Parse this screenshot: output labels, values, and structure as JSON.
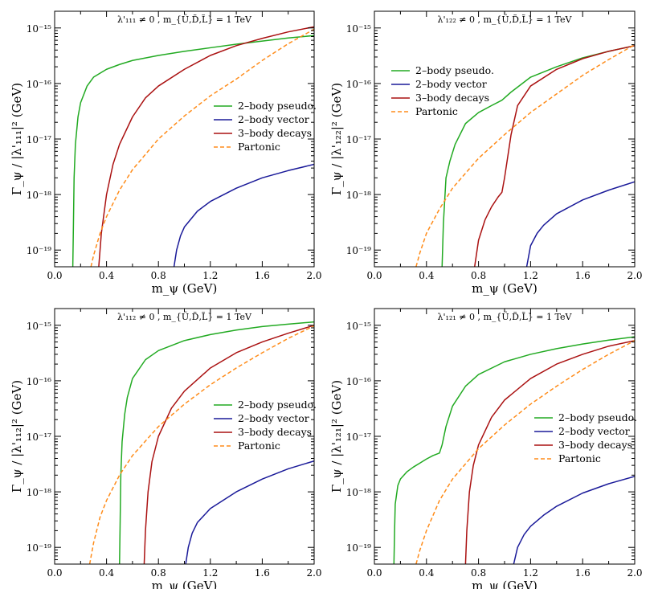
{
  "figure": {
    "line_colors": {
      "pseudo": "#22aa22",
      "vector": "#1a1a99",
      "three": "#aa1111",
      "partonic": "#ff8c1a"
    }
  },
  "chart_data": [
    {
      "type": "line",
      "annotation": "λ'₁₁₁ ≠ 0 ,  m_{Ũ,D̃,L̃} = 1 TeV",
      "xlabel": "m_ψ  (GeV)",
      "ylabel": "Γ_ψ / |λ'₁₁₁|²  (GeV)",
      "xlim": [
        0.0,
        2.0
      ],
      "ylim": [
        5e-20,
        2e-15
      ],
      "yscale": "log",
      "x_ticks": [
        "0.0",
        "0.4",
        "0.8",
        "1.2",
        "1.6",
        "2.0"
      ],
      "y_ticks": [
        "10⁻¹⁹",
        "10⁻¹⁸",
        "10⁻¹⁷",
        "10⁻¹⁶",
        "10⁻¹⁵"
      ],
      "legend_position": "right",
      "series": [
        {
          "name": "2–body pseudo.",
          "style": "solid",
          "color": "#22aa22",
          "x": [
            0.14,
            0.145,
            0.15,
            0.16,
            0.18,
            0.2,
            0.25,
            0.3,
            0.4,
            0.5,
            0.6,
            0.8,
            1.0,
            1.2,
            1.4,
            1.6,
            1.8,
            2.0
          ],
          "y": [
            5e-20,
            3e-19,
            2e-18,
            8e-18,
            2.5e-17,
            4.5e-17,
            9e-17,
            1.3e-16,
            1.8e-16,
            2.2e-16,
            2.6e-16,
            3.2e-16,
            3.8e-16,
            4.4e-16,
            5.1e-16,
            5.8e-16,
            6.6e-16,
            7.3e-16
          ]
        },
        {
          "name": "2–body vector",
          "style": "solid",
          "color": "#1a1a99",
          "x": [
            0.92,
            0.94,
            0.97,
            1.0,
            1.1,
            1.2,
            1.4,
            1.6,
            1.8,
            2.0
          ],
          "y": [
            5e-20,
            1e-19,
            1.8e-19,
            2.6e-19,
            5e-19,
            7.5e-19,
            1.3e-18,
            2e-18,
            2.7e-18,
            3.5e-18
          ]
        },
        {
          "name": "3–body decays",
          "style": "solid",
          "color": "#aa1111",
          "x": [
            0.34,
            0.36,
            0.4,
            0.45,
            0.5,
            0.6,
            0.7,
            0.8,
            1.0,
            1.2,
            1.4,
            1.6,
            1.8,
            2.0
          ],
          "y": [
            5e-20,
            2e-19,
            1e-18,
            3.5e-18,
            8e-18,
            2.5e-17,
            5.5e-17,
            9e-17,
            1.8e-16,
            3.2e-16,
            4.8e-16,
            6.5e-16,
            8.5e-16,
            1.05e-15
          ]
        },
        {
          "name": "Partonic",
          "style": "dashed",
          "color": "#ff8c1a",
          "x": [
            0.28,
            0.3,
            0.35,
            0.4,
            0.5,
            0.6,
            0.8,
            1.0,
            1.2,
            1.4,
            1.6,
            1.8,
            2.0
          ],
          "y": [
            5e-20,
            8e-20,
            2e-19,
            4e-19,
            1.2e-18,
            2.8e-18,
            1e-17,
            2.6e-17,
            6e-17,
            1.2e-16,
            2.6e-16,
            5.2e-16,
            9.5e-16
          ]
        }
      ]
    },
    {
      "type": "line",
      "annotation": "λ'₁₂₂ ≠ 0 ,  m_{Ũ,D̃,L̃} = 1 TeV",
      "xlabel": "m_ψ  (GeV)",
      "ylabel": "Γ_ψ / |λ'₁₂₂|²  (GeV)",
      "xlim": [
        0.0,
        2.0
      ],
      "ylim": [
        5e-20,
        2e-15
      ],
      "yscale": "log",
      "x_ticks": [
        "0.0",
        "0.4",
        "0.8",
        "1.2",
        "1.6",
        "2.0"
      ],
      "y_ticks": [
        "10⁻¹⁹",
        "10⁻¹⁸",
        "10⁻¹⁷",
        "10⁻¹⁶",
        "10⁻¹⁵"
      ],
      "legend_position": "upper-left",
      "series": [
        {
          "name": "2–body pseudo.",
          "style": "solid",
          "color": "#22aa22",
          "x": [
            0.52,
            0.53,
            0.55,
            0.58,
            0.62,
            0.7,
            0.8,
            0.9,
            0.98,
            1.05,
            1.2,
            1.4,
            1.6,
            1.8,
            2.0
          ],
          "y": [
            5e-20,
            3e-19,
            2e-18,
            4e-18,
            8e-18,
            1.9e-17,
            3e-17,
            4e-17,
            5e-17,
            7e-17,
            1.3e-16,
            2e-16,
            2.9e-16,
            3.8e-16,
            4.8e-16
          ]
        },
        {
          "name": "2–body vector",
          "style": "solid",
          "color": "#1a1a99",
          "x": [
            1.17,
            1.2,
            1.25,
            1.3,
            1.4,
            1.6,
            1.8,
            2.0
          ],
          "y": [
            5e-20,
            1.2e-19,
            2e-19,
            2.8e-19,
            4.5e-19,
            8e-19,
            1.2e-18,
            1.7e-18
          ]
        },
        {
          "name": "3–body decays",
          "style": "solid",
          "color": "#aa1111",
          "x": [
            0.77,
            0.8,
            0.85,
            0.9,
            0.95,
            0.98,
            1.0,
            1.05,
            1.1,
            1.2,
            1.4,
            1.6,
            1.8,
            2.0
          ],
          "y": [
            5e-20,
            1.5e-19,
            3.5e-19,
            6e-19,
            9e-19,
            1.1e-18,
            2e-18,
            1.2e-17,
            4e-17,
            9e-17,
            1.8e-16,
            2.8e-16,
            3.8e-16,
            4.8e-16
          ]
        },
        {
          "name": "Partonic",
          "style": "dashed",
          "color": "#ff8c1a",
          "x": [
            0.32,
            0.35,
            0.4,
            0.5,
            0.6,
            0.8,
            1.0,
            1.2,
            1.4,
            1.6,
            1.8,
            2.0
          ],
          "y": [
            5e-20,
            9e-20,
            2e-19,
            5.5e-19,
            1.3e-18,
            4.5e-18,
            1.2e-17,
            3e-17,
            6.5e-17,
            1.4e-16,
            2.7e-16,
            5e-16
          ]
        }
      ]
    },
    {
      "type": "line",
      "annotation": "λ'₁₁₂ ≠ 0 ,  m_{Ũ,D̃,L̃} = 1 TeV",
      "xlabel": "m_ψ  (GeV)",
      "ylabel": "Γ_ψ / |λ'₁₁₂|²  (GeV)",
      "xlim": [
        0.0,
        2.0
      ],
      "ylim": [
        5e-20,
        2e-15
      ],
      "yscale": "log",
      "x_ticks": [
        "0.0",
        "0.4",
        "0.8",
        "1.2",
        "1.6",
        "2.0"
      ],
      "y_ticks": [
        "10⁻¹⁹",
        "10⁻¹⁸",
        "10⁻¹⁷",
        "10⁻¹⁶",
        "10⁻¹⁵"
      ],
      "legend_position": "right",
      "series": [
        {
          "name": "2–body pseudo.",
          "style": "solid",
          "color": "#22aa22",
          "x": [
            0.5,
            0.505,
            0.51,
            0.52,
            0.54,
            0.56,
            0.6,
            0.7,
            0.8,
            1.0,
            1.2,
            1.4,
            1.6,
            1.8,
            2.0
          ],
          "y": [
            5e-20,
            3e-19,
            2e-18,
            8e-18,
            2.5e-17,
            5e-17,
            1.1e-16,
            2.4e-16,
            3.5e-16,
            5.3e-16,
            6.8e-16,
            8.2e-16,
            9.5e-16,
            1.05e-15,
            1.15e-15
          ]
        },
        {
          "name": "2–body vector",
          "style": "solid",
          "color": "#1a1a99",
          "x": [
            1.01,
            1.03,
            1.06,
            1.1,
            1.2,
            1.4,
            1.6,
            1.8,
            2.0
          ],
          "y": [
            5e-20,
            1e-19,
            1.8e-19,
            2.8e-19,
            5e-19,
            1e-18,
            1.7e-18,
            2.6e-18,
            3.6e-18
          ]
        },
        {
          "name": "3–body decays",
          "style": "solid",
          "color": "#aa1111",
          "x": [
            0.69,
            0.7,
            0.72,
            0.75,
            0.8,
            0.9,
            1.0,
            1.2,
            1.4,
            1.6,
            1.8,
            2.0
          ],
          "y": [
            5e-20,
            2e-19,
            1e-18,
            3.5e-18,
            1e-17,
            3.2e-17,
            6.5e-17,
            1.7e-16,
            3.2e-16,
            5e-16,
            7.2e-16,
            1e-15
          ]
        },
        {
          "name": "Partonic",
          "style": "dashed",
          "color": "#ff8c1a",
          "x": [
            0.27,
            0.3,
            0.35,
            0.4,
            0.5,
            0.6,
            0.8,
            1.0,
            1.2,
            1.4,
            1.6,
            1.8,
            2.0
          ],
          "y": [
            5e-20,
            1.2e-19,
            3.5e-19,
            7e-19,
            2e-18,
            4.5e-18,
            1.5e-17,
            3.8e-17,
            8.5e-17,
            1.7e-16,
            3.2e-16,
            5.8e-16,
            9.8e-16
          ]
        }
      ]
    },
    {
      "type": "line",
      "annotation": "λ'₁₂₁ ≠ 0 ,  m_{Ũ,D̃,L̃} = 1 TeV",
      "xlabel": "m_ψ  (GeV)",
      "ylabel": "Γ_ψ / |λ'₁₂₁|²  (GeV)",
      "xlim": [
        0.0,
        2.0
      ],
      "ylim": [
        5e-20,
        2e-15
      ],
      "yscale": "log",
      "x_ticks": [
        "0.0",
        "0.4",
        "0.8",
        "1.2",
        "1.6",
        "2.0"
      ],
      "y_ticks": [
        "10⁻¹⁹",
        "10⁻¹⁸",
        "10⁻¹⁷",
        "10⁻¹⁶",
        "10⁻¹⁵"
      ],
      "legend_position": "right",
      "series": [
        {
          "name": "2–body pseudo.",
          "style": "solid",
          "color": "#22aa22",
          "x": [
            0.15,
            0.155,
            0.16,
            0.18,
            0.2,
            0.25,
            0.3,
            0.35,
            0.4,
            0.45,
            0.5,
            0.52,
            0.55,
            0.6,
            0.7,
            0.8,
            1.0,
            1.2,
            1.4,
            1.6,
            1.8,
            2.0
          ],
          "y": [
            5e-20,
            2e-19,
            6e-19,
            1.3e-18,
            1.7e-18,
            2.3e-18,
            2.8e-18,
            3.3e-18,
            3.9e-18,
            4.5e-18,
            5e-18,
            7e-18,
            1.5e-17,
            3.5e-17,
            8e-17,
            1.3e-16,
            2.2e-16,
            3e-16,
            3.8e-16,
            4.6e-16,
            5.4e-16,
            6.2e-16
          ]
        },
        {
          "name": "2–body vector",
          "style": "solid",
          "color": "#1a1a99",
          "x": [
            1.07,
            1.1,
            1.15,
            1.2,
            1.3,
            1.4,
            1.6,
            1.8,
            2.0
          ],
          "y": [
            5e-20,
            1e-19,
            1.7e-19,
            2.4e-19,
            3.8e-19,
            5.5e-19,
            9.5e-19,
            1.4e-18,
            1.9e-18
          ]
        },
        {
          "name": "3–body decays",
          "style": "solid",
          "color": "#aa1111",
          "x": [
            0.7,
            0.71,
            0.73,
            0.76,
            0.8,
            0.9,
            1.0,
            1.2,
            1.4,
            1.6,
            1.8,
            2.0
          ],
          "y": [
            5e-20,
            2e-19,
            1e-18,
            3e-18,
            7e-18,
            2.2e-17,
            4.5e-17,
            1.1e-16,
            2e-16,
            3e-16,
            4.2e-16,
            5.3e-16
          ]
        },
        {
          "name": "Partonic",
          "style": "dashed",
          "color": "#ff8c1a",
          "x": [
            0.32,
            0.35,
            0.4,
            0.5,
            0.6,
            0.8,
            1.0,
            1.2,
            1.4,
            1.6,
            1.8,
            2.0
          ],
          "y": [
            5e-20,
            9e-20,
            2e-19,
            7e-19,
            1.7e-18,
            6e-18,
            1.6e-17,
            3.8e-17,
            8e-17,
            1.6e-16,
            3e-16,
            5.3e-16
          ]
        }
      ]
    }
  ]
}
